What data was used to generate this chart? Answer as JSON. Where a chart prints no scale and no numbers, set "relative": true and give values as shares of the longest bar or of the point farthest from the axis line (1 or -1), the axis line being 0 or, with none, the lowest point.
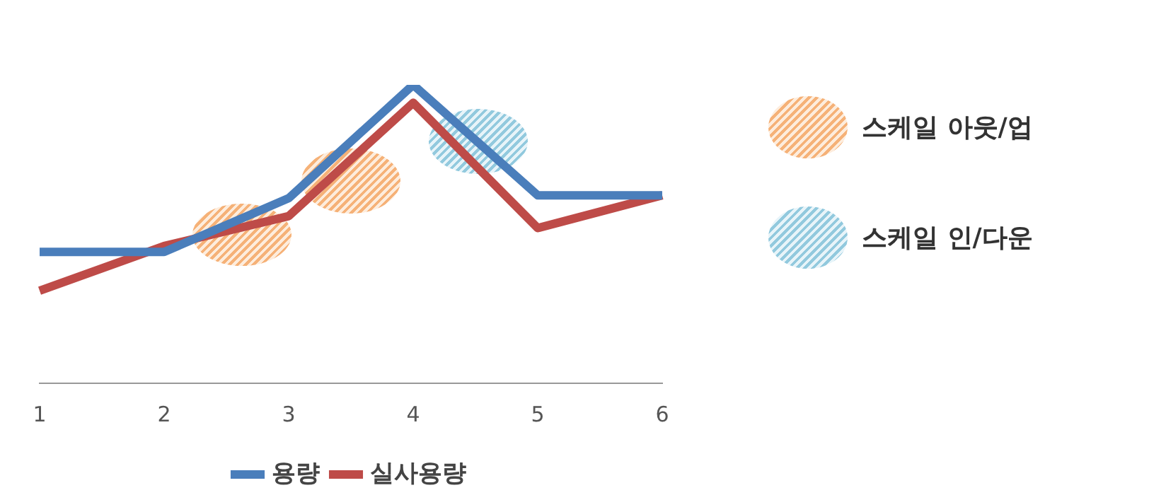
{
  "chart_data": {
    "type": "line",
    "relative": true,
    "categories": [
      "1",
      "2",
      "3",
      "4",
      "5",
      "6"
    ],
    "series": [
      {
        "name": "용량",
        "color": "#4a7ebb",
        "values": [
          0.44,
          0.44,
          0.62,
          1.0,
          0.63,
          0.63
        ]
      },
      {
        "name": "실사용량",
        "color": "#be4b48",
        "values": [
          0.31,
          0.46,
          0.56,
          0.94,
          0.52,
          0.63
        ]
      }
    ],
    "legend": "bottom",
    "tick_labels": "x",
    "grid": false,
    "annotations": [
      "스케일 아웃/업",
      "스케일 인/다운"
    ]
  }
}
